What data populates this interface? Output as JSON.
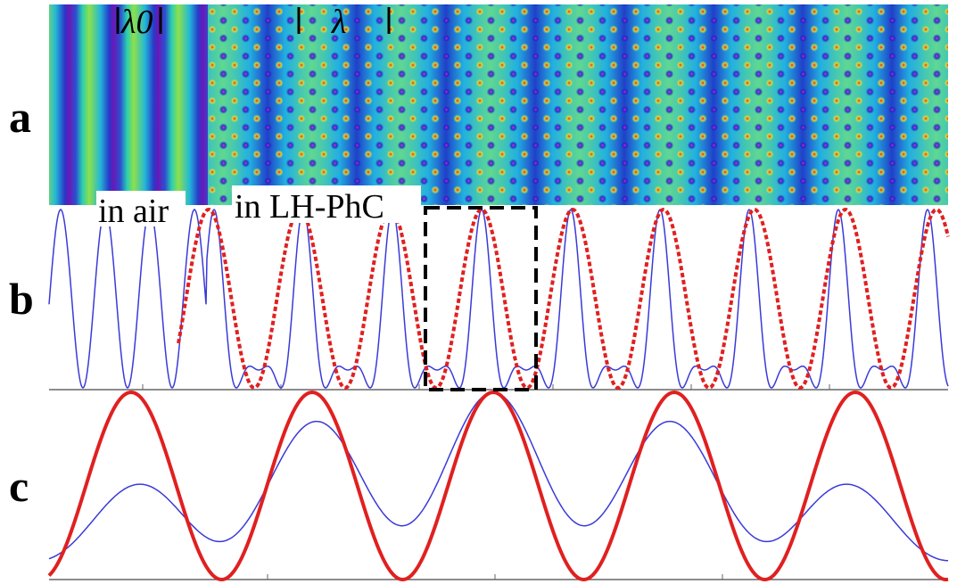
{
  "panels": {
    "a": {
      "label": "a",
      "wavelength_air": "λ0",
      "wavelength_crystal": "λ",
      "region_air": "in air",
      "region_crystal": "in LH-PhC"
    },
    "b": {
      "label": "b"
    },
    "c": {
      "label": "c"
    }
  }
}
